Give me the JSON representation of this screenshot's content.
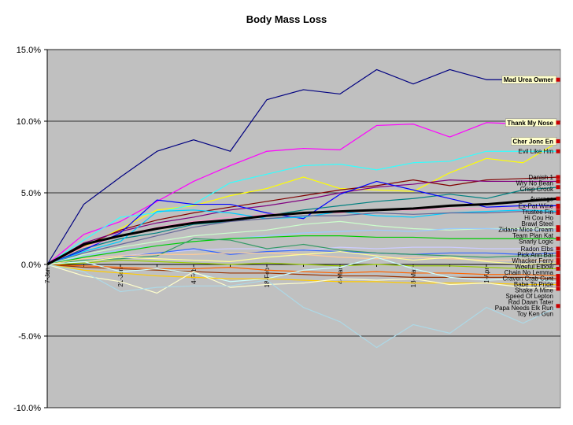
{
  "chart_data": {
    "type": "line",
    "title": "Body Mass Loss",
    "xlabel": "",
    "ylabel": "",
    "ylim": [
      -10,
      15
    ],
    "y_unit": "%",
    "y_ticks": [
      "15.0%",
      "10.0%",
      "5.0%",
      "0.0%",
      "-5.0%",
      "-10.0%"
    ],
    "x_ticks": [
      "7-Jan",
      "21-Jan",
      "4-Feb",
      "18-Feb",
      "4-Mar",
      "18-Mar",
      "1-Apr"
    ],
    "x": [
      "7-Jan",
      "14-Jan",
      "21-Jan",
      "28-Jan",
      "4-Feb",
      "11-Feb",
      "18-Feb",
      "25-Feb",
      "4-Mar",
      "11-Mar",
      "18-Mar",
      "25-Mar",
      "1-Apr",
      "8-Apr",
      "15-Apr"
    ],
    "grid": true,
    "plot_background": "#c0c0c0",
    "series": [
      {
        "name": "Mad Urea Owner",
        "color": "#000080",
        "highlight": true,
        "values": [
          0,
          4.2,
          6.1,
          7.9,
          8.7,
          7.9,
          11.5,
          12.2,
          11.9,
          13.6,
          12.6,
          13.6,
          12.9,
          12.9,
          12.9
        ]
      },
      {
        "name": "Thank My Nose",
        "color": "#ff00ff",
        "highlight": true,
        "values": [
          0,
          2.1,
          3.0,
          4.4,
          5.8,
          6.9,
          7.9,
          8.1,
          8.0,
          9.7,
          9.8,
          8.9,
          9.9,
          9.8,
          9.9
        ]
      },
      {
        "name": "Cher Jonc En",
        "color": "#ffff00",
        "highlight": true,
        "values": [
          0,
          1.2,
          2.5,
          3.8,
          4.1,
          4.8,
          5.3,
          6.1,
          5.3,
          5.2,
          5.1,
          6.4,
          7.4,
          7.1,
          8.6
        ]
      },
      {
        "name": "Evil Like Hm",
        "color": "#33ffff",
        "values": [
          0,
          1.7,
          3.3,
          3.6,
          4.2,
          5.7,
          6.3,
          6.9,
          7.0,
          6.6,
          7.1,
          7.2,
          7.9,
          7.9,
          7.9
        ]
      },
      {
        "name": "Danish 1",
        "color": "#800000",
        "values": [
          0,
          1.3,
          2.4,
          3.1,
          3.6,
          4.0,
          4.4,
          4.8,
          5.2,
          5.5,
          5.9,
          5.5,
          5.9,
          6.0,
          6.1
        ]
      },
      {
        "name": "Wry No Bean",
        "color": "#800080",
        "values": [
          0,
          1.5,
          2.3,
          2.9,
          3.3,
          3.8,
          4.1,
          4.5,
          5.0,
          5.4,
          5.6,
          5.9,
          5.8,
          5.8,
          5.8
        ]
      },
      {
        "name": "Crisp Crook",
        "color": "#008080",
        "values": [
          0,
          1.1,
          1.8,
          2.2,
          2.8,
          3.0,
          3.4,
          3.8,
          4.1,
          4.4,
          4.6,
          4.9,
          4.6,
          5.2,
          5.4
        ]
      },
      {
        "name": "Average",
        "color": "#000000",
        "thick": true,
        "values": [
          0,
          1.4,
          2.0,
          2.5,
          2.9,
          3.1,
          3.4,
          3.6,
          3.7,
          3.8,
          3.9,
          4.1,
          4.2,
          4.4,
          4.6
        ]
      },
      {
        "name": "Ex-Pat Wine",
        "color": "#0000ff",
        "values": [
          0,
          1.0,
          2.2,
          4.5,
          4.2,
          4.2,
          3.6,
          3.2,
          4.9,
          5.8,
          5.2,
          4.6,
          4.0,
          4.1,
          4.1
        ]
      },
      {
        "name": "Trustee Fin",
        "color": "#ff99cc",
        "values": [
          0,
          1.2,
          2.0,
          2.6,
          3.0,
          3.3,
          3.5,
          3.6,
          3.6,
          3.8,
          3.8,
          3.9,
          3.9,
          3.9,
          4.0
        ]
      },
      {
        "name": "Hi Cou Ho",
        "color": "#00ccff",
        "values": [
          0,
          0.9,
          1.6,
          3.7,
          3.8,
          3.6,
          3.2,
          3.3,
          3.7,
          3.4,
          3.3,
          3.6,
          3.7,
          3.8,
          3.7
        ]
      },
      {
        "name": "Brawl Steel",
        "color": "#666699",
        "values": [
          0,
          0.8,
          1.4,
          2.0,
          2.6,
          3.0,
          3.2,
          3.4,
          3.4,
          3.6,
          3.5,
          3.6,
          3.6,
          3.7,
          3.6
        ]
      },
      {
        "name": "Zidane Mice Cream",
        "color": "#ccffcc",
        "values": [
          0,
          0.7,
          1.2,
          1.6,
          2.0,
          2.2,
          2.4,
          2.8,
          3.0,
          2.7,
          2.5,
          2.4,
          2.5,
          2.5,
          2.6
        ]
      },
      {
        "name": "Team Plan Kat",
        "color": "#99ccff",
        "values": [
          0,
          0.6,
          1.0,
          1.3,
          1.6,
          1.8,
          2.0,
          2.2,
          2.3,
          2.4,
          2.3,
          2.5,
          2.5,
          2.4,
          2.4
        ]
      },
      {
        "name": "Snarly Logic",
        "color": "#00cc00",
        "values": [
          0,
          0.5,
          0.9,
          1.3,
          1.6,
          1.8,
          1.9,
          2.0,
          2.0,
          1.9,
          1.9,
          1.8,
          1.8,
          1.8,
          1.8
        ]
      },
      {
        "name": "Radon Elbs",
        "color": "#ccccff",
        "values": [
          0,
          0.3,
          0.6,
          0.8,
          1.0,
          1.1,
          1.1,
          1.0,
          1.2,
          1.1,
          1.2,
          1.2,
          1.1,
          1.1,
          1.1
        ]
      },
      {
        "name": "Pick Ann Bar",
        "color": "#3366ff",
        "values": [
          0,
          0.2,
          0.5,
          0.8,
          1.1,
          0.7,
          0.9,
          1.0,
          0.9,
          0.8,
          0.7,
          0.8,
          0.8,
          0.7,
          0.8
        ]
      },
      {
        "name": "Whacker Ferry",
        "color": "#339966",
        "values": [
          0,
          0.3,
          0.4,
          0.6,
          1.8,
          1.7,
          1.1,
          1.4,
          1.0,
          0.8,
          0.7,
          0.6,
          0.5,
          0.6,
          0.6
        ]
      },
      {
        "name": "Woeful Elbow",
        "color": "#ffcc99",
        "values": [
          0,
          0.4,
          0.6,
          0.7,
          0.7,
          0.8,
          0.8,
          0.7,
          0.5,
          0.4,
          0.5,
          0.4,
          0.3,
          0.3,
          0.3
        ]
      },
      {
        "name": "Chain No Lemma",
        "color": "#ffff99",
        "values": [
          0,
          0.2,
          0.5,
          0.4,
          0.3,
          0.2,
          0.5,
          0.7,
          0.9,
          0.6,
          0.3,
          0.5,
          0.2,
          0.0,
          0.1
        ]
      },
      {
        "name": "Craven Crab Cunt",
        "color": "#99cc00",
        "values": [
          0,
          0.1,
          0.3,
          0.2,
          0.1,
          0.0,
          0.1,
          0.0,
          -0.1,
          0.0,
          -0.1,
          -0.1,
          -0.2,
          -0.3,
          -0.3
        ]
      },
      {
        "name": "Babe To Pride",
        "color": "#ff6600",
        "values": [
          0,
          -0.1,
          -0.2,
          -0.3,
          -0.3,
          -0.2,
          -0.4,
          -0.5,
          -0.6,
          -0.5,
          -0.6,
          -0.6,
          -0.7,
          -0.7,
          -0.8
        ]
      },
      {
        "name": "Shake A Mine",
        "color": "#993300",
        "values": [
          0,
          -0.2,
          -0.3,
          -0.4,
          -0.5,
          -0.6,
          -0.6,
          -0.7,
          -0.8,
          -0.8,
          -0.9,
          -0.9,
          -0.9,
          -0.9,
          -1.0
        ]
      },
      {
        "name": "Speed Of Lepton",
        "color": "#ccffff",
        "values": [
          0,
          0.2,
          -0.5,
          -0.3,
          -0.6,
          -1.2,
          -1.0,
          -0.4,
          -0.2,
          0.5,
          -0.3,
          -0.9,
          -1.1,
          -1.0,
          -1.2
        ]
      },
      {
        "name": "Rad Dawn Tater",
        "color": "#ffcc00",
        "values": [
          0,
          -0.4,
          -0.6,
          -0.8,
          -0.9,
          -1.0,
          -1.0,
          -1.1,
          -1.2,
          -1.2,
          -1.3,
          -1.3,
          -1.3,
          -1.4,
          -1.4
        ]
      },
      {
        "name": "Papa Needs Elk Run",
        "color": "#ffffcc",
        "values": [
          0,
          -0.8,
          -1.2,
          -2.0,
          -0.5,
          -1.6,
          -1.4,
          -1.3,
          -1.0,
          -1.1,
          -1.0,
          -1.4,
          -1.3,
          -1.6,
          -1.7
        ]
      },
      {
        "name": "Toy Ken Gun",
        "color": "#add8e6",
        "values": [
          0,
          -0.5,
          -1.9,
          -1.6,
          -1.5,
          -1.5,
          -1.1,
          -3.0,
          -4.0,
          -5.8,
          -4.2,
          -4.8,
          -3.0,
          -4.1,
          -2.9
        ]
      }
    ]
  }
}
